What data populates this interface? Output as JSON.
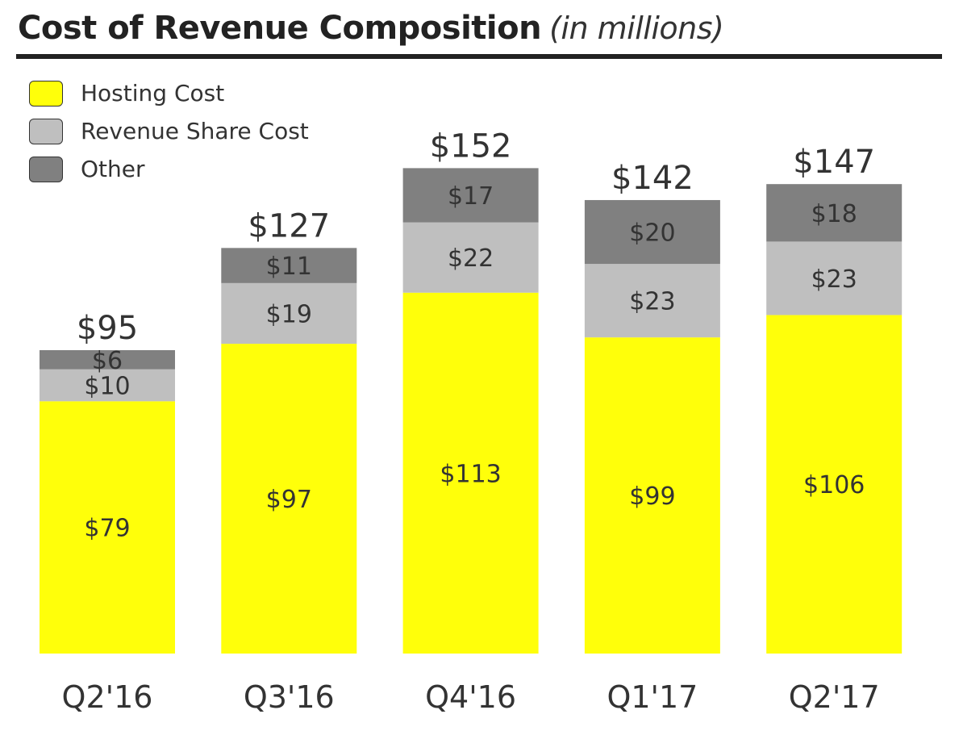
{
  "title": "Cost of Revenue Composition",
  "subtitle": "(in millions)",
  "chart_data": {
    "type": "bar",
    "stacked": true,
    "title": "Cost of Revenue Composition (in millions)",
    "xlabel": "",
    "ylabel": "",
    "ylim": [
      0,
      160
    ],
    "grid": false,
    "legend_position": "top-left",
    "categories": [
      "Q2'16",
      "Q3'16",
      "Q4'16",
      "Q1'17",
      "Q2'17"
    ],
    "totals": [
      95,
      127,
      152,
      142,
      147
    ],
    "total_labels": [
      "$95",
      "$127",
      "$152",
      "$142",
      "$147"
    ],
    "series": [
      {
        "name": "Hosting Cost",
        "color": "#FFFF0A",
        "values": [
          79,
          97,
          113,
          99,
          106
        ],
        "labels": [
          "$79",
          "$97",
          "$113",
          "$99",
          "$106"
        ]
      },
      {
        "name": "Revenue Share Cost",
        "color": "#BFBFBF",
        "values": [
          10,
          19,
          22,
          23,
          23
        ],
        "labels": [
          "$10",
          "$19",
          "$22",
          "$23",
          "$23"
        ]
      },
      {
        "name": "Other",
        "color": "#808080",
        "values": [
          6,
          11,
          17,
          20,
          18
        ],
        "labels": [
          "$6",
          "$11",
          "$17",
          "$20",
          "$18"
        ]
      }
    ]
  }
}
